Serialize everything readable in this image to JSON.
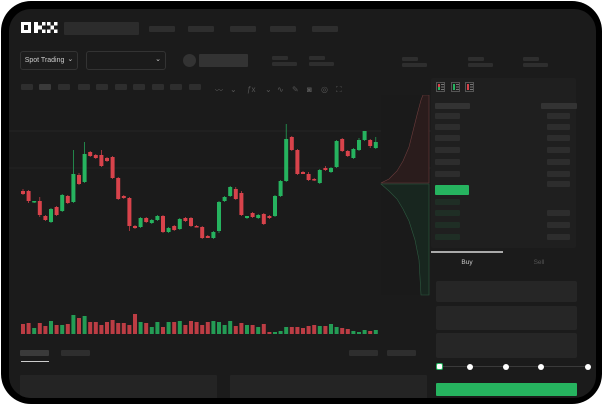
{
  "header": {
    "logo": "OKX"
  },
  "toolbar": {
    "market_selector": "Spot Trading",
    "pair_selector": "",
    "chevron": "⌄"
  },
  "order_form": {
    "tabs": [
      {
        "label": "Buy",
        "active": true
      },
      {
        "label": "Sell",
        "active": false
      }
    ],
    "slider_fraction": 0
  },
  "colors": {
    "up": "#26b35f",
    "down": "#d8434b",
    "button": "#26b35f",
    "background": "#1b1b1b"
  },
  "icons": [
    "chart-type-icon",
    "chevron-down-icon",
    "indicator-icon",
    "line-icon",
    "ruler-icon",
    "camera-icon",
    "settings-icon",
    "fullscreen-icon",
    "orderbook-both-icon",
    "orderbook-buy-icon",
    "orderbook-sell-icon"
  ],
  "chart_data": {
    "type": "candlestick",
    "candles": [
      [
        58,
        60,
        54,
        55
      ],
      [
        58,
        59,
        46,
        48
      ],
      [
        47,
        48,
        46,
        48
      ],
      [
        48,
        52,
        32,
        34
      ],
      [
        33,
        34,
        28,
        29
      ],
      [
        27,
        41,
        26,
        40
      ],
      [
        42,
        43,
        33,
        34
      ],
      [
        38,
        55,
        37,
        54
      ],
      [
        53,
        54,
        45,
        46
      ],
      [
        47,
        99,
        46,
        75
      ],
      [
        74,
        76,
        64,
        65
      ],
      [
        67,
        107,
        66,
        95
      ],
      [
        97,
        98,
        92,
        93
      ],
      [
        94,
        95,
        90,
        91
      ],
      [
        94,
        99,
        82,
        83
      ],
      [
        91,
        92,
        87,
        88
      ],
      [
        92,
        93,
        70,
        71
      ],
      [
        71,
        72,
        49,
        50
      ],
      [
        53,
        54,
        50,
        51
      ],
      [
        51,
        52,
        18,
        23
      ],
      [
        23,
        24,
        20,
        21
      ],
      [
        22,
        32,
        21,
        31
      ],
      [
        31,
        32,
        26,
        27
      ],
      [
        26,
        30,
        25,
        29
      ],
      [
        29,
        34,
        28,
        33
      ],
      [
        33,
        34,
        16,
        17
      ],
      [
        17,
        22,
        16,
        21
      ],
      [
        23,
        24,
        18,
        19
      ],
      [
        20,
        31,
        19,
        30
      ],
      [
        31,
        32,
        27,
        28
      ],
      [
        31,
        32,
        22,
        23
      ],
      [
        23,
        24,
        22,
        22
      ],
      [
        22,
        23,
        10,
        11
      ],
      [
        13,
        14,
        11,
        11
      ],
      [
        11,
        18,
        10,
        17
      ],
      [
        18,
        48,
        16,
        47
      ],
      [
        48,
        53,
        47,
        52
      ],
      [
        53,
        63,
        52,
        62
      ],
      [
        60,
        62,
        49,
        50
      ],
      [
        56,
        58,
        33,
        34
      ],
      [
        31,
        33,
        30,
        33
      ],
      [
        36,
        37,
        31,
        32
      ],
      [
        31,
        35,
        30,
        34
      ],
      [
        35,
        36,
        24,
        25
      ],
      [
        33,
        34,
        30,
        31
      ],
      [
        33,
        54,
        32,
        53
      ],
      [
        53,
        69,
        52,
        68
      ],
      [
        68,
        125,
        67,
        110
      ],
      [
        112,
        113,
        98,
        99
      ],
      [
        99,
        100,
        74,
        75
      ],
      [
        77,
        78,
        75,
        75
      ],
      [
        75,
        77,
        68,
        69
      ],
      [
        70,
        71,
        68,
        69
      ],
      [
        66,
        80,
        65,
        79
      ],
      [
        81,
        83,
        78,
        79
      ],
      [
        77,
        82,
        76,
        81
      ],
      [
        82,
        109,
        81,
        108
      ],
      [
        110,
        111,
        97,
        98
      ],
      [
        98,
        99,
        92,
        93
      ],
      [
        91,
        101,
        90,
        100
      ],
      [
        99,
        111,
        98,
        109
      ],
      [
        109,
        118,
        108,
        118
      ],
      [
        109,
        110,
        101,
        103
      ],
      [
        101,
        112,
        100,
        107
      ]
    ],
    "volume": [
      10,
      11,
      6,
      11,
      8,
      13,
      9,
      9,
      10,
      19,
      16,
      18,
      12,
      12,
      9,
      12,
      14,
      11,
      11,
      9,
      20,
      12,
      11,
      7,
      12,
      7,
      12,
      12,
      13,
      9,
      13,
      12,
      9,
      12,
      13,
      12,
      9,
      13,
      8,
      11,
      9,
      9,
      7,
      10,
      2,
      2,
      3,
      7,
      7,
      7,
      6,
      8,
      9,
      8,
      8,
      10,
      7,
      6,
      5,
      3,
      2,
      4,
      3,
      4
    ]
  }
}
